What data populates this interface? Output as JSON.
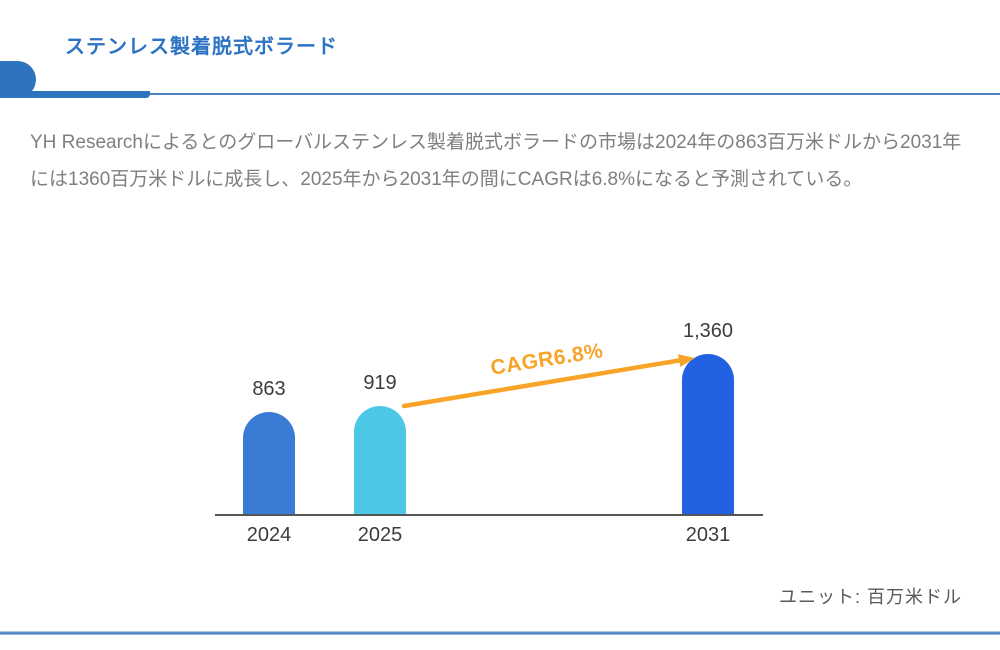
{
  "header": {
    "title": "ステンレス製着脱式ボラード"
  },
  "summary": {
    "text": "YH Researchによるとのグローバルステンレス製着脱式ボラードの市場は2024年の863百万米ドルから2031年には1360百万米ドルに成長し、2025年から2031年の間にCAGRは6.8%になると予測されている。"
  },
  "chart_data": {
    "type": "bar",
    "categories": [
      "2024",
      "2025",
      "2031"
    ],
    "values": [
      863,
      919,
      1360
    ],
    "value_labels": [
      "863",
      "919",
      "1,360"
    ],
    "annotation": "CAGR6.8%",
    "unit_label": "ユニット: 百万米ドル",
    "ylim": [
      0,
      1360
    ],
    "grid": false,
    "legend": false,
    "bar_colors": [
      "#3a7bd5",
      "#4dc7e6",
      "#2262e2"
    ],
    "arrow_color": "#f7a428"
  },
  "colors": {
    "accent_blue": "#2e73bd",
    "title_blue": "#2d73c4",
    "divider_blue": "#4a80c2",
    "body_gray": "#7f7f7f",
    "label_dark": "#3c3c3c",
    "axis_gray": "#555555",
    "unit_gray": "#595959",
    "arrow_orange": "#f7a428"
  }
}
